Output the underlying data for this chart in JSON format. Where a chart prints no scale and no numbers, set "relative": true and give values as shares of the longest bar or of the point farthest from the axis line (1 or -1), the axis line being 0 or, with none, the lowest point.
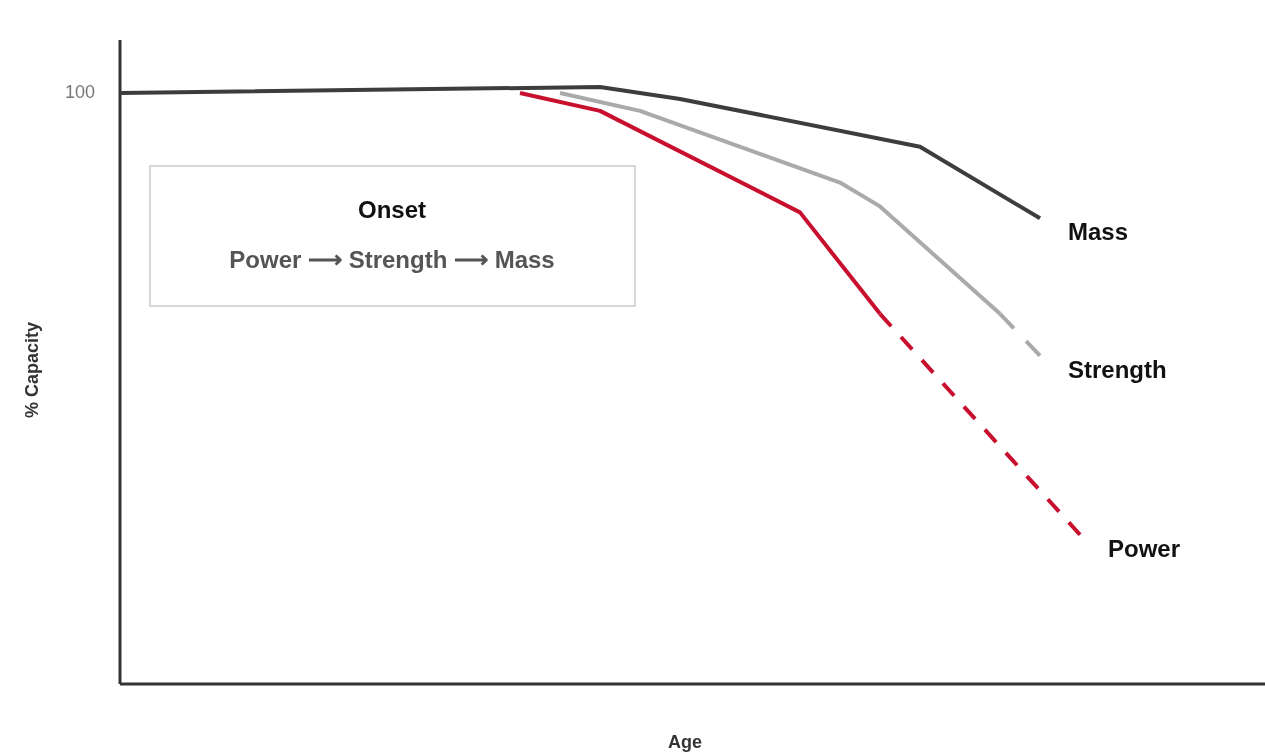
{
  "chart_data": {
    "type": "line",
    "relative": true,
    "xlabel": "Age",
    "ylabel": "% Capacity",
    "categories": [
      null,
      null,
      null,
      null,
      null,
      null,
      null,
      null,
      null,
      null,
      null,
      null,
      null,
      null,
      null,
      null,
      null,
      null,
      null,
      null,
      null,
      null,
      null,
      null,
      null,
      null,
      null,
      null,
      null
    ],
    "series": [
      {
        "name": "Mass",
        "color": "#3d3d3d",
        "line_style": "solid",
        "values": [
          0.99,
          null,
          null,
          null,
          null,
          null,
          null,
          null,
          null,
          null,
          null,
          null,
          1,
          null,
          0.98,
          null,
          null,
          null,
          null,
          null,
          0.9,
          null,
          null,
          0.78,
          null,
          null,
          null,
          null,
          null
        ]
      },
      {
        "color": "#aaaaaa",
        "line_style": "solid",
        "values": [
          null,
          null,
          null,
          null,
          null,
          null,
          null,
          null,
          null,
          null,
          null,
          0.99,
          null,
          0.96,
          null,
          null,
          null,
          null,
          0.84,
          0.8,
          null,
          null,
          0.62,
          null,
          null,
          null,
          null,
          null,
          null
        ]
      },
      {
        "name": "Strength",
        "color": "#aaaaaa",
        "line_style": "dashed",
        "values": [
          null,
          null,
          null,
          null,
          null,
          null,
          null,
          null,
          null,
          null,
          null,
          null,
          null,
          null,
          null,
          null,
          null,
          null,
          null,
          null,
          null,
          null,
          0.62,
          0.55,
          null,
          null,
          null,
          null,
          null
        ]
      },
      {
        "color": "#c8102e",
        "line_style": "solid",
        "values": [
          null,
          null,
          null,
          null,
          null,
          null,
          null,
          null,
          null,
          null,
          0.99,
          null,
          0.96,
          null,
          null,
          null,
          null,
          0.79,
          null,
          0.62,
          null,
          null,
          null,
          null,
          null,
          null,
          null,
          null,
          null
        ]
      },
      {
        "name": "Power",
        "color": "#c8102e",
        "line_style": "dashed",
        "values": [
          null,
          null,
          null,
          null,
          null,
          null,
          null,
          null,
          null,
          null,
          null,
          null,
          null,
          null,
          null,
          null,
          null,
          null,
          null,
          0.62,
          null,
          null,
          null,
          null,
          0.25,
          null,
          null,
          null,
          null
        ]
      }
    ],
    "annotations": [
      "100",
      "Onset",
      "Power ⟶ Strength ⟶ Mass"
    ],
    "legend": false,
    "grid": false,
    "marker": "none"
  }
}
